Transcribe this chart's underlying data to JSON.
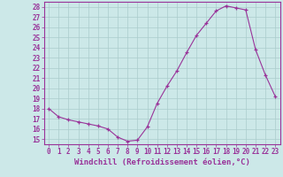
{
  "xlabel": "Windchill (Refroidissement éolien,°C)",
  "hours": [
    0,
    1,
    2,
    3,
    4,
    5,
    6,
    7,
    8,
    9,
    10,
    11,
    12,
    13,
    14,
    15,
    16,
    17,
    18,
    19,
    20,
    21,
    22,
    23
  ],
  "values": [
    18.0,
    17.2,
    16.9,
    16.7,
    16.5,
    16.3,
    16.0,
    15.2,
    14.8,
    14.9,
    16.2,
    18.5,
    20.2,
    21.7,
    23.5,
    25.2,
    26.4,
    27.6,
    28.1,
    27.9,
    27.7,
    23.8,
    21.3,
    19.2
  ],
  "line_color": "#993399",
  "bg_color": "#cce8e8",
  "grid_color": "#aacccc",
  "yticks": [
    15,
    16,
    17,
    18,
    19,
    20,
    21,
    22,
    23,
    24,
    25,
    26,
    27,
    28
  ],
  "xticks": [
    0,
    1,
    2,
    3,
    4,
    5,
    6,
    7,
    8,
    9,
    10,
    11,
    12,
    13,
    14,
    15,
    16,
    17,
    18,
    19,
    20,
    21,
    22,
    23
  ],
  "tick_label_fontsize": 5.5,
  "xlabel_fontsize": 6.5,
  "label_color": "#993399"
}
